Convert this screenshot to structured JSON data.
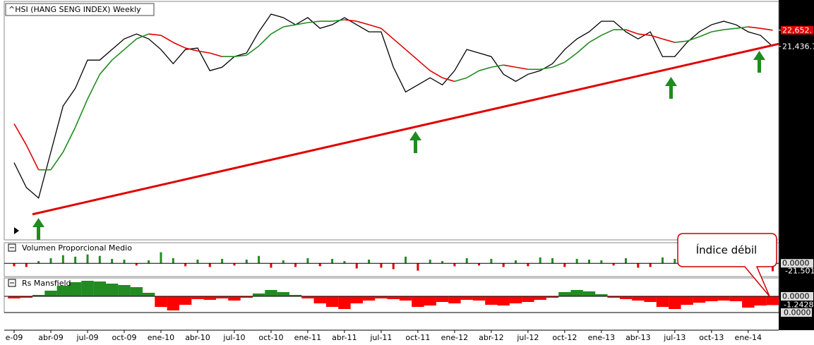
{
  "chart_data": [
    {
      "type": "line",
      "title": "^HSI (HANG SENG INDEX) Weekly",
      "categories": [
        "e-09",
        null,
        null,
        "abr-09",
        null,
        null,
        "jul-09",
        null,
        null,
        "oct-09",
        null,
        null,
        "ene-10",
        null,
        null,
        "abr-10",
        null,
        null,
        "jul-10",
        null,
        null,
        "oct-10",
        null,
        null,
        "ene-11",
        null,
        null,
        "abr-11",
        null,
        null,
        "jul-11",
        null,
        null,
        "oct-11",
        null,
        null,
        "ene-12",
        null,
        null,
        "abr-12",
        null,
        null,
        "jul-12",
        null,
        null,
        "oct-12",
        null,
        null,
        "ene-13",
        null,
        null,
        "abr-13",
        null,
        null,
        "jul-13",
        null,
        null,
        "oct-13",
        null,
        null,
        "ene-14",
        null,
        null
      ],
      "ylim": [
        7000,
        24800
      ],
      "series": [
        {
          "color": "#000000",
          "values": [
            12760,
            10910,
            10120,
            13550,
            16990,
            18310,
            20420,
            20420,
            21210,
            22000,
            22370,
            22000,
            21210,
            20150,
            21210,
            21320,
            19630,
            19890,
            20680,
            20950,
            22530,
            23850,
            23590,
            23060,
            23590,
            22790,
            23060,
            23590,
            23060,
            22530,
            22530,
            19890,
            18040,
            18570,
            19100,
            18570,
            19630,
            21210,
            20950,
            20680,
            19360,
            18830,
            19360,
            19630,
            20150,
            21210,
            22000,
            22530,
            23320,
            23320,
            22530,
            22000,
            22530,
            20680,
            20680,
            21740,
            22530,
            23060,
            23320,
            23060,
            22530,
            22270,
            21436.7
          ]
        },
        {
          "color": "#228b22",
          "down_color": "#e00000",
          "values": [
            15670,
            14080,
            12230,
            12230,
            13550,
            15400,
            17510,
            19360,
            20420,
            21210,
            22000,
            22370,
            22270,
            21740,
            21320,
            21100,
            20950,
            20680,
            20680,
            20790,
            21470,
            22370,
            22900,
            23060,
            23220,
            23320,
            23320,
            23430,
            23320,
            23060,
            22790,
            22000,
            21210,
            20420,
            19630,
            19100,
            18830,
            19100,
            19630,
            19890,
            20050,
            19890,
            19730,
            19730,
            19890,
            20260,
            20950,
            21740,
            22270,
            22690,
            22690,
            22370,
            22270,
            22000,
            21740,
            21840,
            22160,
            22530,
            22690,
            22790,
            22900,
            22790,
            22652
          ]
        }
      ],
      "trendline": {
        "color": "#e00000",
        "x": [
          1.5,
          62.5
        ],
        "values": [
          8910,
          21630
        ]
      },
      "yticks": [
        {
          "value": 22652,
          "label": "22,652."
        },
        {
          "value": 21436.7,
          "label": "21,436.7"
        }
      ]
    },
    {
      "type": "bar",
      "title": "Volumen Proporcional Medio",
      "colors": {
        "up": "#228b22",
        "down": "#e00000"
      },
      "values": [
        -8,
        -10,
        6,
        14,
        22,
        18,
        24,
        20,
        12,
        10,
        -6,
        8,
        30,
        14,
        -8,
        10,
        -10,
        12,
        -6,
        10,
        20,
        -12,
        8,
        -10,
        14,
        -8,
        12,
        6,
        -14,
        10,
        -12,
        -16,
        18,
        -20,
        10,
        6,
        -8,
        14,
        -6,
        12,
        -10,
        8,
        -8,
        16,
        14,
        -10,
        12,
        10,
        8,
        -6,
        14,
        -12,
        -10,
        16,
        12,
        -8,
        10,
        -6,
        8,
        -10,
        10,
        -8,
        -21.501
      ],
      "ylim": [
        -36,
        54
      ],
      "yticks": [
        {
          "value": 0,
          "label": "0.0000"
        }
      ]
    },
    {
      "type": "area",
      "title": "Rs Mansfield",
      "colors": {
        "up": "#228b22",
        "down": "#ff0000"
      },
      "values": [
        -0.3,
        -0.2,
        0.2,
        0.8,
        1.5,
        2.0,
        2.2,
        2.1,
        1.8,
        1.6,
        1.3,
        0.5,
        -1.5,
        -2.0,
        -1.2,
        -0.4,
        -0.5,
        -0.3,
        -0.6,
        -0.2,
        0.4,
        0.9,
        0.6,
        0.2,
        -0.3,
        -1.0,
        -1.5,
        -1.8,
        -1.0,
        -0.6,
        -0.3,
        -0.4,
        -0.6,
        -1.5,
        -1.3,
        -0.8,
        -1.0,
        -0.5,
        -0.6,
        -1.2,
        -1.3,
        -1.0,
        -0.8,
        -0.5,
        -0.2,
        0.6,
        0.9,
        0.7,
        0.3,
        -0.2,
        -0.4,
        -0.6,
        -0.8,
        -1.5,
        -1.8,
        -1.2,
        -0.9,
        -0.7,
        -0.6,
        -0.7,
        -1.6,
        -1.3,
        -1.2428
      ],
      "ylim": [
        -2.2,
        2.5
      ],
      "yticks": [
        {
          "value": 0,
          "label": "0.0000"
        }
      ]
    }
  ],
  "annotation": "Índice débil",
  "lower_panel_label": "0.0000"
}
